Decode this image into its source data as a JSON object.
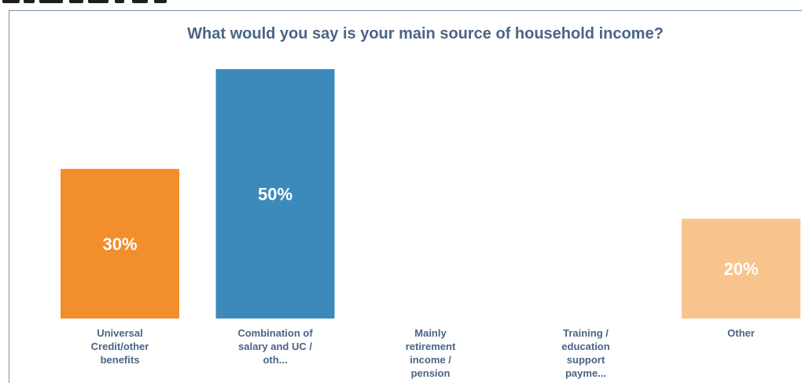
{
  "chart_data": {
    "type": "bar",
    "title": "What would you say is your main source of household income?",
    "categories": [
      "Universal\nCredit/other\nbenefits",
      "Combination of\nsalary and UC /\noth...",
      "Mainly\nretirement\nincome /\npension",
      "Training /\neducation\nsupport\npayme...",
      "Other"
    ],
    "values": [
      30,
      50,
      0,
      0,
      20
    ],
    "data_labels": [
      "30%",
      "50%",
      "",
      "",
      "20%"
    ],
    "colors": [
      "#f28e2b",
      "#3c89bb",
      "#cccccc",
      "#cccccc",
      "#f8c48d"
    ],
    "ylim": [
      0,
      50
    ],
    "grid": false,
    "xlabel": "",
    "ylabel": ""
  }
}
